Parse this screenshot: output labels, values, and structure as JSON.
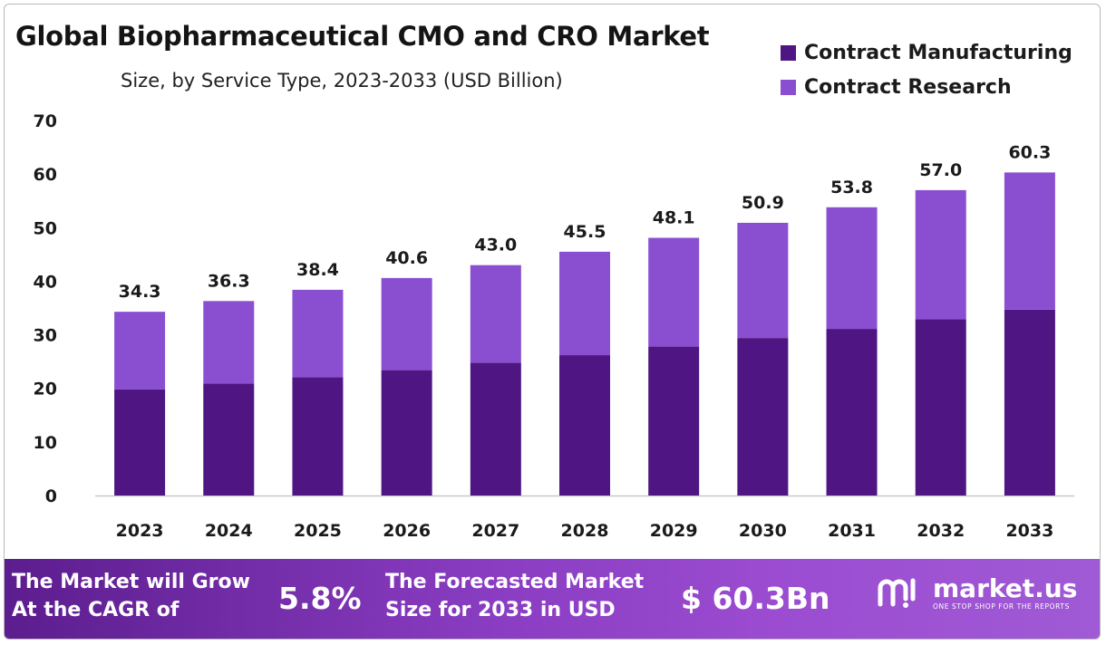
{
  "title": "Global Biopharmaceutical  CMO and CRO Market",
  "subtitle": "Size, by Service Type, 2023-2033 (USD Billion)",
  "colors": {
    "manufacturing": "#4f1582",
    "research": "#8a4fd1"
  },
  "chart_data": {
    "type": "bar",
    "stacked": true,
    "categories": [
      "2023",
      "2024",
      "2025",
      "2026",
      "2027",
      "2028",
      "2029",
      "2030",
      "2031",
      "2032",
      "2033"
    ],
    "series": [
      {
        "name": "Contract Manufacturing",
        "values": [
          19.8,
          20.9,
          22.1,
          23.4,
          24.8,
          26.2,
          27.8,
          29.4,
          31.1,
          32.9,
          34.7
        ]
      },
      {
        "name": "Contract Research",
        "values": [
          14.5,
          15.4,
          16.3,
          17.2,
          18.2,
          19.3,
          20.3,
          21.5,
          22.7,
          24.1,
          25.6
        ]
      }
    ],
    "totals": [
      "34.3",
      "36.3",
      "38.4",
      "40.6",
      "43.0",
      "45.5",
      "48.1",
      "50.9",
      "53.8",
      "57.0",
      "60.3"
    ],
    "yticks": [
      "0",
      "10",
      "20",
      "30",
      "40",
      "50",
      "60",
      "70"
    ],
    "ylim": [
      0,
      70
    ],
    "legend": "top-right",
    "grid": false
  },
  "banner": {
    "cagr_text_line1": "The Market will Grow",
    "cagr_text_line2": "At the CAGR of",
    "cagr_value": "5.8%",
    "forecast_text_line1": "The Forecasted Market",
    "forecast_text_line2": "Size for 2033 in USD",
    "forecast_value": "$ 60.3Bn",
    "logo_name": "market.us",
    "logo_tagline": "ONE STOP SHOP FOR THE REPORTS"
  }
}
